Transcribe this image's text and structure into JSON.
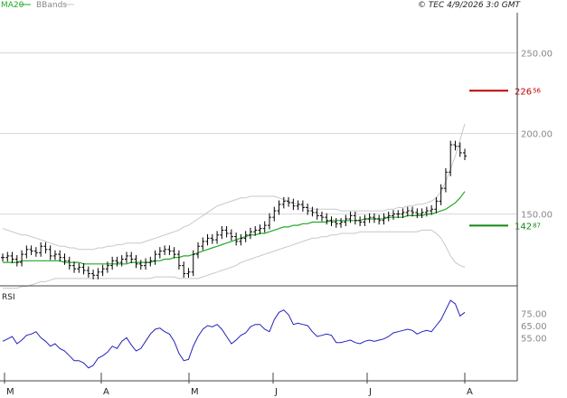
{
  "header": {
    "legend_ma": "MA20",
    "legend_bbands": "BBands",
    "copyright": "© TEC 4/9/2026 3:0 GMT"
  },
  "colors": {
    "price_bars": "#000000",
    "ma20": "#22aa22",
    "bbands": "#c8c8c8",
    "rsi": "#2222bb",
    "resistance": "#c00000",
    "support": "#118811",
    "grid": "#d8d8d8",
    "axis": "#444444",
    "tick_text": "#888888"
  },
  "chart_data": [
    {
      "type": "ohlc",
      "title": "",
      "legend": [
        "MA20",
        "BBands"
      ],
      "legend_placement": "top-left",
      "grid": true,
      "ylim": [
        106,
        275
      ],
      "y_ticks": [
        {
          "value": 250,
          "label": "250.00"
        },
        {
          "value": 200,
          "label": "200.00"
        },
        {
          "value": 150,
          "label": "150.00"
        }
      ],
      "x_ticks": [
        "M",
        "A",
        "M",
        "J",
        "J",
        "A"
      ],
      "levels": [
        {
          "name": "resistance",
          "value": 226.56,
          "label_main": "226",
          "label_dec": "56"
        },
        {
          "name": "support",
          "value": 142.87,
          "label_main": "142",
          "label_dec": "87"
        }
      ],
      "close": [
        123,
        124,
        122,
        120,
        125,
        128,
        127,
        126,
        130,
        128,
        124,
        125,
        123,
        121,
        118,
        116,
        117,
        115,
        113,
        112,
        114,
        116,
        118,
        121,
        120,
        122,
        124,
        122,
        119,
        118,
        120,
        121,
        125,
        127,
        128,
        127,
        125,
        118,
        113,
        114,
        125,
        130,
        133,
        135,
        134,
        137,
        140,
        138,
        136,
        133,
        135,
        137,
        139,
        140,
        141,
        143,
        148,
        152,
        156,
        158,
        157,
        155,
        156,
        154,
        152,
        151,
        149,
        148,
        146,
        145,
        144,
        145,
        147,
        149,
        146,
        145,
        147,
        148,
        147,
        146,
        148,
        149,
        150,
        150,
        151,
        152,
        151,
        150,
        151,
        152,
        153,
        158,
        166,
        176,
        193,
        192,
        188,
        186
      ],
      "ma20": [
        120,
        120,
        120,
        120,
        121,
        121,
        121,
        121,
        121,
        121,
        121,
        121,
        121,
        120,
        120,
        120,
        120,
        119,
        119,
        119,
        119,
        119,
        119,
        119,
        119,
        119,
        119,
        120,
        120,
        120,
        120,
        120,
        121,
        121,
        122,
        122,
        123,
        123,
        124,
        124,
        125,
        126,
        127,
        128,
        129,
        130,
        131,
        132,
        133,
        134,
        135,
        136,
        137,
        137,
        138,
        138,
        139,
        140,
        141,
        142,
        142,
        143,
        143,
        144,
        144,
        145,
        145,
        145,
        145,
        146,
        146,
        146,
        146,
        146,
        146,
        146,
        147,
        147,
        147,
        147,
        147,
        148,
        148,
        148,
        148,
        149,
        149,
        149,
        149,
        150,
        150,
        151,
        152,
        153,
        155,
        157,
        160,
        164
      ],
      "bb_upper": [
        141,
        140,
        139,
        138,
        137,
        137,
        136,
        135,
        134,
        133,
        132,
        131,
        130,
        130,
        129,
        129,
        128,
        128,
        128,
        128,
        129,
        129,
        130,
        130,
        131,
        131,
        132,
        132,
        132,
        132,
        133,
        134,
        135,
        136,
        137,
        138,
        139,
        140,
        142,
        143,
        145,
        147,
        149,
        151,
        153,
        155,
        156,
        157,
        158,
        159,
        160,
        160,
        161,
        161,
        161,
        161,
        161,
        161,
        160,
        159,
        158,
        157,
        156,
        155,
        154,
        153,
        153,
        153,
        153,
        153,
        153,
        152,
        152,
        152,
        152,
        152,
        152,
        152,
        152,
        152,
        152,
        153,
        153,
        154,
        154,
        155,
        155,
        156,
        156,
        157,
        158,
        160,
        164,
        170,
        178,
        186,
        196,
        206
      ],
      "bb_lower": [
        104,
        104,
        104,
        104,
        105,
        105,
        106,
        107,
        108,
        108,
        109,
        110,
        110,
        110,
        110,
        110,
        110,
        110,
        110,
        110,
        110,
        110,
        110,
        110,
        110,
        110,
        110,
        110,
        110,
        110,
        110,
        110,
        111,
        111,
        111,
        111,
        111,
        110,
        110,
        110,
        110,
        110,
        111,
        112,
        113,
        114,
        115,
        116,
        117,
        118,
        120,
        121,
        122,
        123,
        124,
        125,
        126,
        127,
        128,
        129,
        130,
        131,
        132,
        133,
        134,
        135,
        135,
        136,
        136,
        137,
        137,
        138,
        138,
        138,
        138,
        139,
        139,
        139,
        139,
        139,
        139,
        139,
        139,
        139,
        139,
        139,
        139,
        139,
        140,
        140,
        140,
        138,
        135,
        130,
        124,
        120,
        118,
        117
      ]
    },
    {
      "type": "line",
      "title": "RSI",
      "series_name": "RSI",
      "grid": false,
      "ylim": [
        20,
        95
      ],
      "y_ticks": [
        {
          "value": 75,
          "label": "75.00"
        },
        {
          "value": 65,
          "label": "65.00"
        },
        {
          "value": 55,
          "label": "55.00"
        }
      ],
      "values": [
        52,
        54,
        56,
        50,
        53,
        57,
        58,
        60,
        55,
        52,
        48,
        50,
        46,
        44,
        40,
        36,
        36,
        34,
        30,
        32,
        38,
        40,
        43,
        48,
        46,
        52,
        55,
        49,
        44,
        46,
        52,
        58,
        62,
        63,
        60,
        58,
        52,
        42,
        36,
        37,
        48,
        56,
        62,
        65,
        64,
        66,
        62,
        56,
        50,
        53,
        57,
        59,
        64,
        66,
        66,
        62,
        60,
        70,
        76,
        78,
        74,
        66,
        67,
        66,
        65,
        60,
        56,
        57,
        58,
        57,
        51,
        51,
        52,
        53,
        51,
        50,
        52,
        53,
        52,
        53,
        54,
        56,
        59,
        60,
        61,
        62,
        61,
        58,
        60,
        61,
        60,
        65,
        70,
        78,
        86,
        83,
        73,
        76
      ]
    }
  ]
}
